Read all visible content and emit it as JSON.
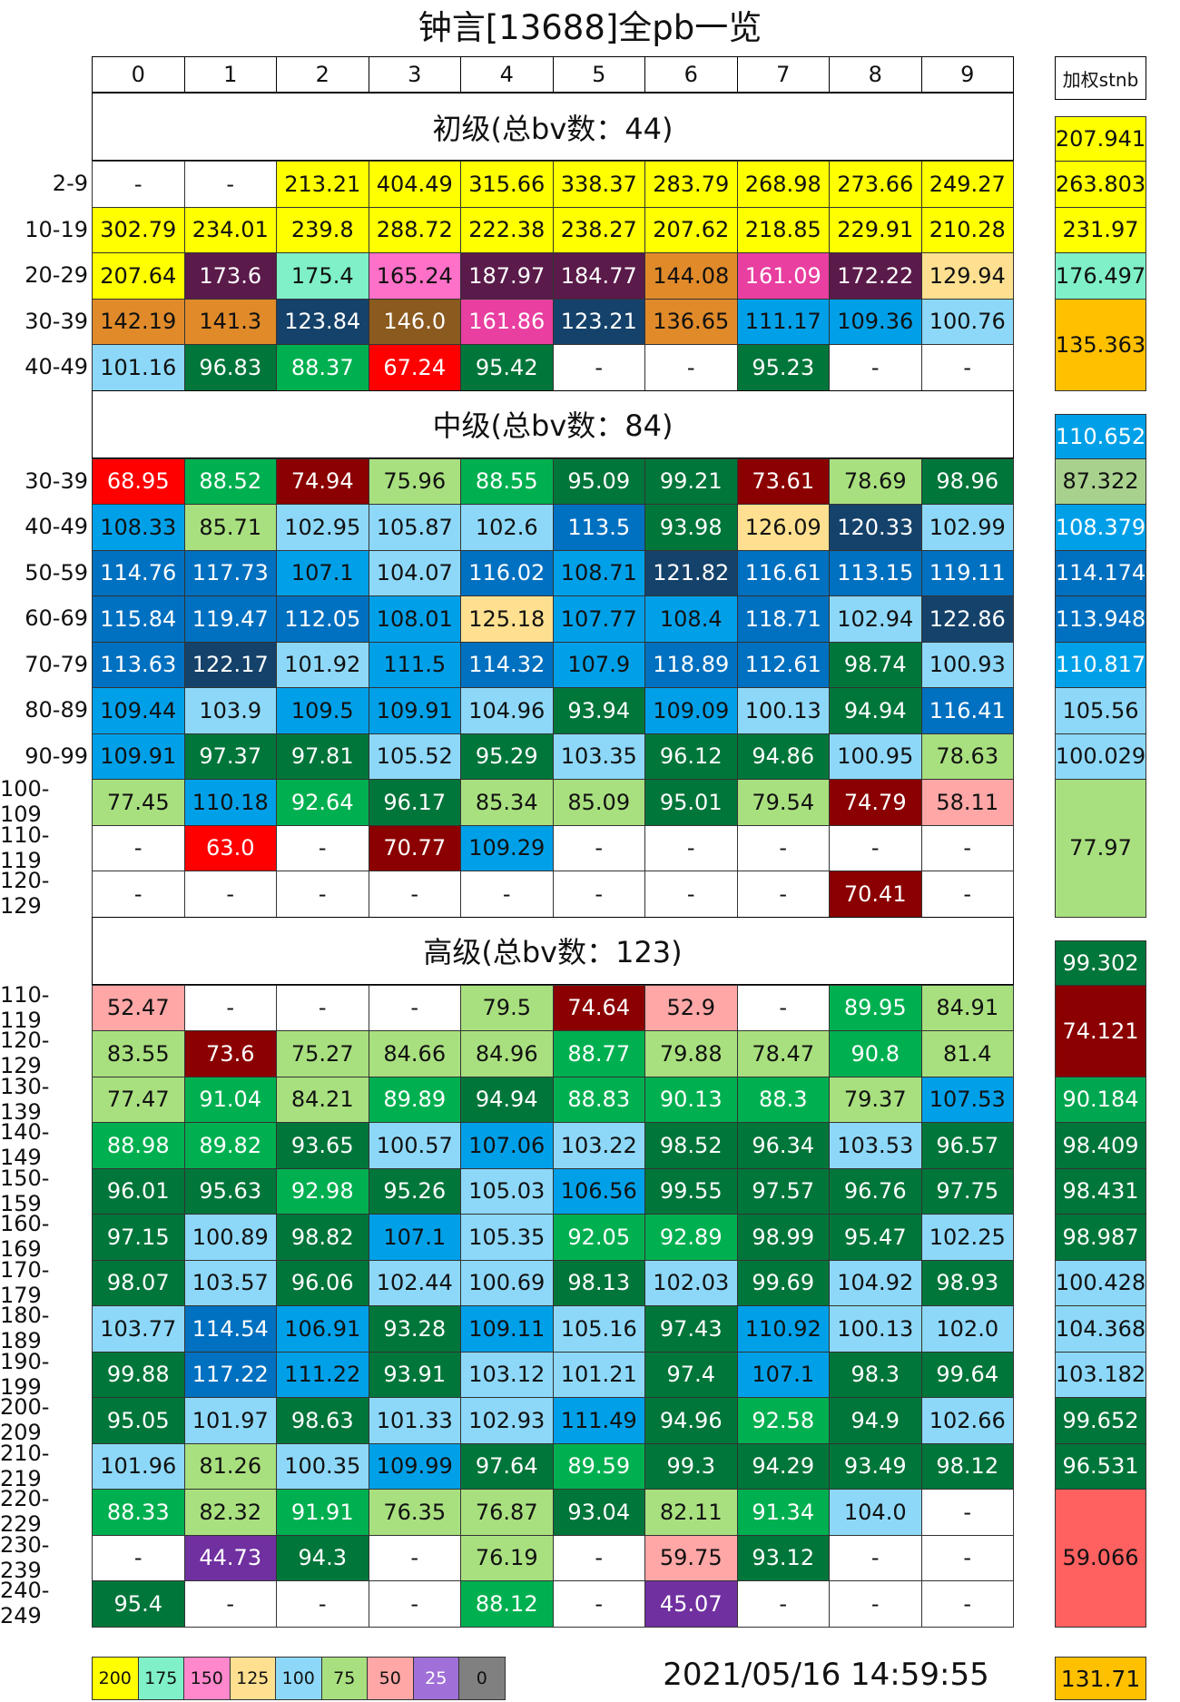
{
  "chart_data": {
    "type": "table",
    "title": "钟言[13688]全pb一览",
    "columns": [
      "0",
      "1",
      "2",
      "3",
      "4",
      "5",
      "6",
      "7",
      "8",
      "9"
    ],
    "weighted_header": "加权stnb",
    "sections": [
      {
        "title": "初级(总bv数：44)",
        "weighted_total": "207.941",
        "weighted_total_color": "#FFFF00",
        "rows": [
          {
            "label": "2-9",
            "values": [
              "-",
              "-",
              "213.21",
              "404.49",
              "315.66",
              "338.37",
              "283.79",
              "268.98",
              "273.66",
              "249.27"
            ]
          },
          {
            "label": "10-19",
            "values": [
              "302.79",
              "234.01",
              "239.8",
              "288.72",
              "222.38",
              "238.27",
              "207.62",
              "218.85",
              "229.91",
              "210.28"
            ]
          },
          {
            "label": "20-29",
            "values": [
              "207.64",
              "173.6",
              "175.4",
              "165.24",
              "187.97",
              "184.77",
              "144.08",
              "161.09",
              "172.22",
              "129.94"
            ]
          },
          {
            "label": "30-39",
            "values": [
              "142.19",
              "141.3",
              "123.84",
              "146.0",
              "161.86",
              "123.21",
              "136.65",
              "111.17",
              "109.36",
              "100.76"
            ]
          },
          {
            "label": "40-49",
            "values": [
              "101.16",
              "96.83",
              "88.37",
              "67.24",
              "95.42",
              "-",
              "-",
              "95.23",
              "-",
              "-"
            ]
          }
        ],
        "weighted": [
          {
            "value": "263.803",
            "span": 1,
            "color": "#FFFF00"
          },
          {
            "value": "231.97",
            "span": 1,
            "color": "#FFFF00"
          },
          {
            "value": "176.497",
            "span": 1,
            "color": "#7FF0C8"
          },
          {
            "value": "135.363",
            "span": 2,
            "color": "#FFC000"
          }
        ]
      },
      {
        "title": "中级(总bv数：84)",
        "weighted_total": "110.652",
        "weighted_total_color": "#00A0E8",
        "rows": [
          {
            "label": "30-39",
            "values": [
              "68.95",
              "88.52",
              "74.94",
              "75.96",
              "88.55",
              "95.09",
              "99.21",
              "73.61",
              "78.69",
              "98.96"
            ]
          },
          {
            "label": "40-49",
            "values": [
              "108.33",
              "85.71",
              "102.95",
              "105.87",
              "102.6",
              "113.5",
              "93.98",
              "126.09",
              "120.33",
              "102.99"
            ]
          },
          {
            "label": "50-59",
            "values": [
              "114.76",
              "117.73",
              "107.1",
              "104.07",
              "116.02",
              "108.71",
              "121.82",
              "116.61",
              "113.15",
              "119.11"
            ]
          },
          {
            "label": "60-69",
            "values": [
              "115.84",
              "119.47",
              "112.05",
              "108.01",
              "125.18",
              "107.77",
              "108.4",
              "118.71",
              "102.94",
              "122.86"
            ]
          },
          {
            "label": "70-79",
            "values": [
              "113.63",
              "122.17",
              "101.92",
              "111.5",
              "114.32",
              "107.9",
              "118.89",
              "112.61",
              "98.74",
              "100.93"
            ]
          },
          {
            "label": "80-89",
            "values": [
              "109.44",
              "103.9",
              "109.5",
              "109.91",
              "104.96",
              "93.94",
              "109.09",
              "100.13",
              "94.94",
              "116.41"
            ]
          },
          {
            "label": "90-99",
            "values": [
              "109.91",
              "97.37",
              "97.81",
              "105.52",
              "95.29",
              "103.35",
              "96.12",
              "94.86",
              "100.95",
              "78.63"
            ]
          },
          {
            "label": "100-109",
            "values": [
              "77.45",
              "110.18",
              "92.64",
              "96.17",
              "85.34",
              "85.09",
              "95.01",
              "79.54",
              "74.79",
              "58.11"
            ]
          },
          {
            "label": "110-119",
            "values": [
              "-",
              "63.0",
              "-",
              "70.77",
              "109.29",
              "-",
              "-",
              "-",
              "-",
              "-"
            ]
          },
          {
            "label": "120-129",
            "values": [
              "-",
              "-",
              "-",
              "-",
              "-",
              "-",
              "-",
              "-",
              "70.41",
              "-"
            ]
          }
        ],
        "weighted": [
          {
            "value": "87.322",
            "span": 1,
            "color": "#A9D18E"
          },
          {
            "value": "108.379",
            "span": 1,
            "color": "#00A0E8"
          },
          {
            "value": "114.174",
            "span": 1,
            "color": "#0070C0"
          },
          {
            "value": "113.948",
            "span": 1,
            "color": "#0070C0"
          },
          {
            "value": "110.817",
            "span": 1,
            "color": "#00A0E8"
          },
          {
            "value": "105.56",
            "span": 1,
            "color": "#8DD8F8"
          },
          {
            "value": "100.029",
            "span": 1,
            "color": "#8DD8F8"
          },
          {
            "value": "77.97",
            "span": 3,
            "color": "#A9E07F"
          }
        ]
      },
      {
        "title": "高级(总bv数：123)",
        "weighted_total": "99.302",
        "weighted_total_color": "#00763A",
        "rows": [
          {
            "label": "110-119",
            "values": [
              "52.47",
              "-",
              "-",
              "-",
              "79.5",
              "74.64",
              "52.9",
              "-",
              "89.95",
              "84.91"
            ]
          },
          {
            "label": "120-129",
            "values": [
              "83.55",
              "73.6",
              "75.27",
              "84.66",
              "84.96",
              "88.77",
              "79.88",
              "78.47",
              "90.8",
              "81.4"
            ]
          },
          {
            "label": "130-139",
            "values": [
              "77.47",
              "91.04",
              "84.21",
              "89.89",
              "94.94",
              "88.83",
              "90.13",
              "88.3",
              "79.37",
              "107.53"
            ]
          },
          {
            "label": "140-149",
            "values": [
              "88.98",
              "89.82",
              "93.65",
              "100.57",
              "107.06",
              "103.22",
              "98.52",
              "96.34",
              "103.53",
              "96.57"
            ]
          },
          {
            "label": "150-159",
            "values": [
              "96.01",
              "95.63",
              "92.98",
              "95.26",
              "105.03",
              "106.56",
              "99.55",
              "97.57",
              "96.76",
              "97.75"
            ]
          },
          {
            "label": "160-169",
            "values": [
              "97.15",
              "100.89",
              "98.82",
              "107.1",
              "105.35",
              "92.05",
              "92.89",
              "98.99",
              "95.47",
              "102.25"
            ]
          },
          {
            "label": "170-179",
            "values": [
              "98.07",
              "103.57",
              "96.06",
              "102.44",
              "100.69",
              "98.13",
              "102.03",
              "99.69",
              "104.92",
              "98.93"
            ]
          },
          {
            "label": "180-189",
            "values": [
              "103.77",
              "114.54",
              "106.91",
              "93.28",
              "109.11",
              "105.16",
              "97.43",
              "110.92",
              "100.13",
              "102.0"
            ]
          },
          {
            "label": "190-199",
            "values": [
              "99.88",
              "117.22",
              "111.22",
              "93.91",
              "103.12",
              "101.21",
              "97.4",
              "107.1",
              "98.3",
              "99.64"
            ]
          },
          {
            "label": "200-209",
            "values": [
              "95.05",
              "101.97",
              "98.63",
              "101.33",
              "102.93",
              "111.49",
              "94.96",
              "92.58",
              "94.9",
              "102.66"
            ]
          },
          {
            "label": "210-219",
            "values": [
              "101.96",
              "81.26",
              "100.35",
              "109.99",
              "97.64",
              "89.59",
              "99.3",
              "94.29",
              "93.49",
              "98.12"
            ]
          },
          {
            "label": "220-229",
            "values": [
              "88.33",
              "82.32",
              "91.91",
              "76.35",
              "76.87",
              "93.04",
              "82.11",
              "91.34",
              "104.0",
              "-"
            ]
          },
          {
            "label": "230-239",
            "values": [
              "-",
              "44.73",
              "94.3",
              "-",
              "76.19",
              "-",
              "59.75",
              "93.12",
              "-",
              "-"
            ]
          },
          {
            "label": "240-249",
            "values": [
              "95.4",
              "-",
              "-",
              "-",
              "88.12",
              "-",
              "45.07",
              "-",
              "-",
              "-"
            ]
          }
        ],
        "weighted": [
          {
            "value": "74.121",
            "span": 2,
            "color": "#8B0000"
          },
          {
            "value": "90.184",
            "span": 1,
            "color": "#00A650"
          },
          {
            "value": "98.409",
            "span": 1,
            "color": "#00763A"
          },
          {
            "value": "98.431",
            "span": 1,
            "color": "#00763A"
          },
          {
            "value": "98.987",
            "span": 1,
            "color": "#00763A"
          },
          {
            "value": "100.428",
            "span": 1,
            "color": "#8DD8F8"
          },
          {
            "value": "104.368",
            "span": 1,
            "color": "#8DD8F8"
          },
          {
            "value": "103.182",
            "span": 1,
            "color": "#8DD8F8"
          },
          {
            "value": "99.652",
            "span": 1,
            "color": "#00763A"
          },
          {
            "value": "96.531",
            "span": 1,
            "color": "#00763A"
          },
          {
            "value": "59.066",
            "span": 3,
            "color": "#FF6060"
          }
        ]
      }
    ],
    "legend": [
      {
        "label": "200",
        "color": "#FFFF00"
      },
      {
        "label": "175",
        "color": "#7FF0C8"
      },
      {
        "label": "150",
        "color": "#FF88CC"
      },
      {
        "label": "125",
        "color": "#FFE090"
      },
      {
        "label": "100",
        "color": "#8DD8F8"
      },
      {
        "label": "75",
        "color": "#A9E07F"
      },
      {
        "label": "50",
        "color": "#FFA6A6"
      },
      {
        "label": "25",
        "color": "#A070D8"
      },
      {
        "label": "0",
        "color": "#808080"
      }
    ],
    "total_stnb": "131.71",
    "total_stnb_color": "#FFC000",
    "timestamp": "2021/05/16 14:59:55",
    "colors": {
      "yellow": "#FFFF00",
      "mint": "#7FF0C8",
      "maroon": "#7F1F3F",
      "pink": "#E83FA0",
      "teal": "#2A8A6A",
      "brown": "#8B5A1F",
      "magenta_light": "#FF70C8",
      "purple_dark": "#5A1A4A",
      "peach": "#FFD98A",
      "orange": "#E08A2A",
      "navy": "#15426A",
      "amber": "#FFC000",
      "light_blue": "#8DD8F8",
      "dark_green": "#00763A",
      "green": "#00B050",
      "red": "#FF0000",
      "dark_red": "#8B0000",
      "light_green": "#A9D18E",
      "mid_blue": "#00A0E8",
      "blue": "#0070C0",
      "light_pink": "#FFA6A6",
      "violet": "#7030A0",
      "salmon": "#FF6060"
    }
  }
}
